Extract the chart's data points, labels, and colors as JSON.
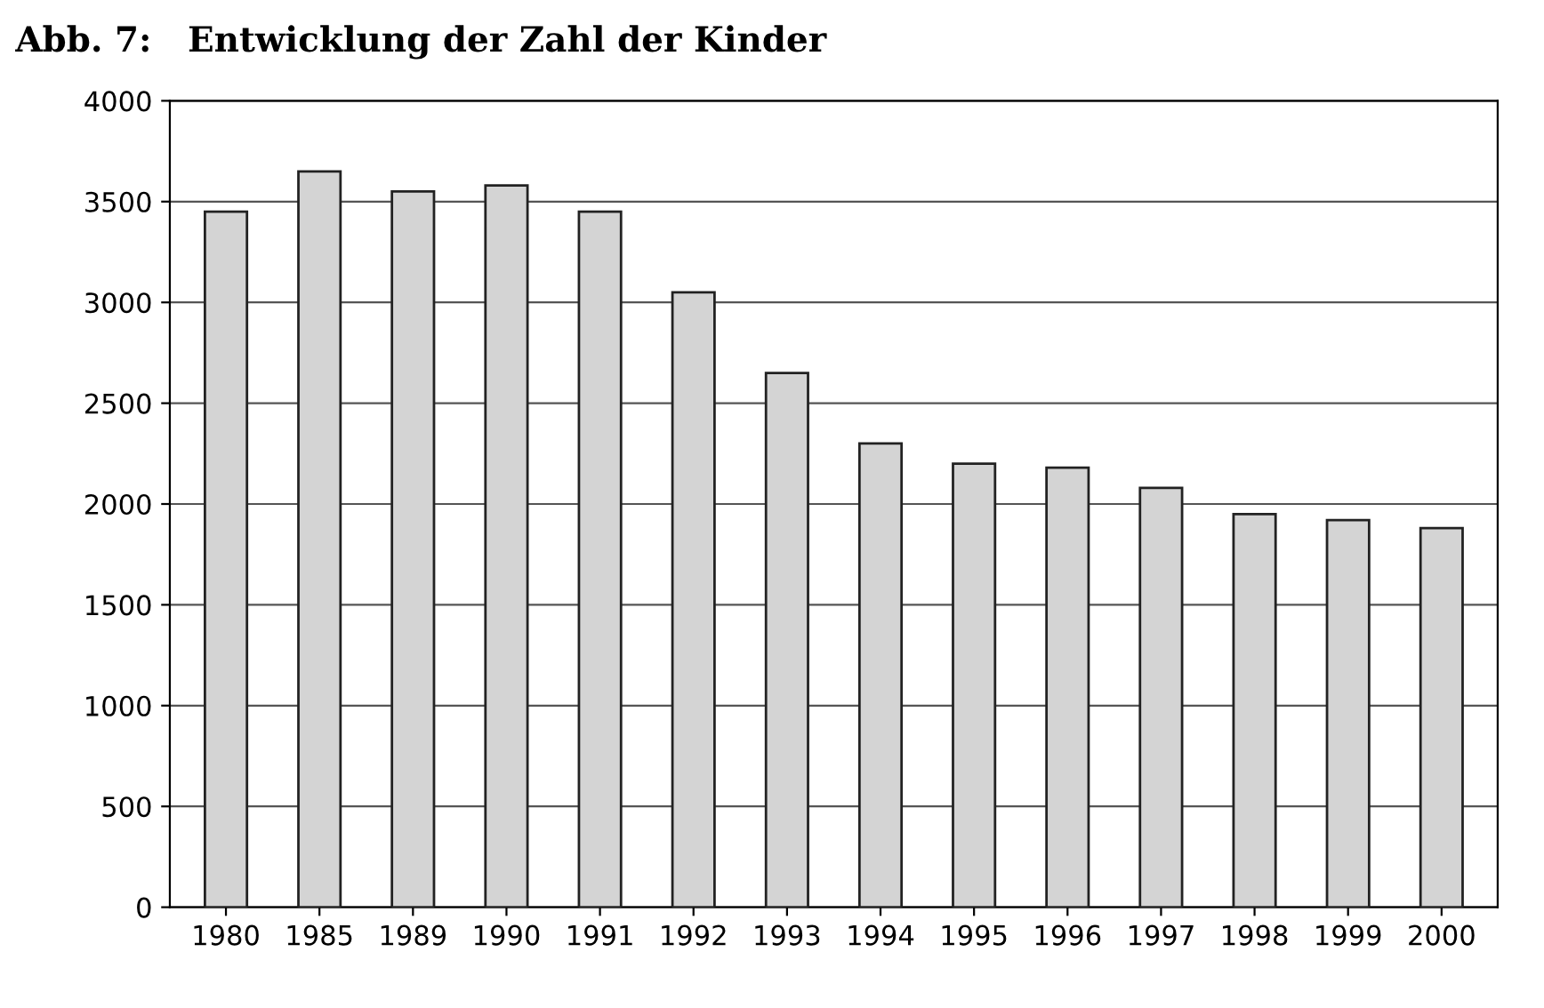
{
  "chart_data": {
    "type": "bar",
    "title": "Abb. 7:   Entwicklung der Zahl der Kinder",
    "categories": [
      "1980",
      "1985",
      "1989",
      "1990",
      "1991",
      "1992",
      "1993",
      "1994",
      "1995",
      "1996",
      "1997",
      "1998",
      "1999",
      "2000"
    ],
    "values": [
      3450,
      3650,
      3550,
      3580,
      3450,
      3050,
      2650,
      2300,
      2200,
      2180,
      2080,
      1950,
      1920,
      1880
    ],
    "color": "#d4d4d4",
    "ylim": [
      0,
      4000
    ],
    "yticks": [
      0,
      500,
      1000,
      1500,
      2000,
      2500,
      3000,
      3500,
      4000
    ],
    "grid": "y"
  }
}
